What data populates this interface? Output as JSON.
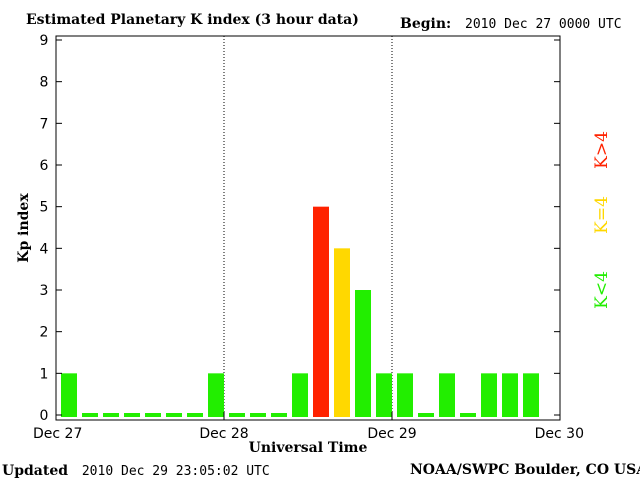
{
  "header": {
    "title": "Estimated Planetary K index (3 hour data)",
    "begin_label": "Begin:",
    "begin_value": "2010 Dec 27 0000 UTC"
  },
  "footer": {
    "updated_label": "Updated",
    "updated_value": "2010 Dec 29 23:05:02 UTC",
    "source": "NOAA/SWPC Boulder, CO USA"
  },
  "legend": {
    "high": {
      "label": "K>4",
      "color": "#ff2200"
    },
    "mid": {
      "label": "K=4",
      "color": "#ffd800"
    },
    "low": {
      "label": "K<4",
      "color": "#22ee00"
    }
  },
  "chart_data": {
    "type": "bar",
    "title": "Estimated Planetary K index (3 hour data)",
    "xlabel": "Universal Time",
    "ylabel": "Kp index",
    "ylim": [
      0,
      9
    ],
    "yticks": [
      0,
      1,
      2,
      3,
      4,
      5,
      6,
      7,
      8,
      9
    ],
    "xlim": [
      "2010-12-27 00:00",
      "2010-12-30 00:00"
    ],
    "x_tick_labels": [
      "Dec 27",
      "Dec 28",
      "Dec 29",
      "Dec 30"
    ],
    "day_separators": [
      "Dec 28",
      "Dec 29"
    ],
    "grid": false,
    "interval_hours": 3,
    "values": [
      1,
      0,
      0,
      0,
      0,
      0,
      0,
      1,
      0,
      0,
      0,
      1,
      5,
      4,
      3,
      1,
      1,
      0,
      1,
      0,
      1,
      1,
      1
    ],
    "colors": {
      "below4": "#22ee00",
      "equal4": "#ffd800",
      "above4": "#ff2200"
    }
  }
}
